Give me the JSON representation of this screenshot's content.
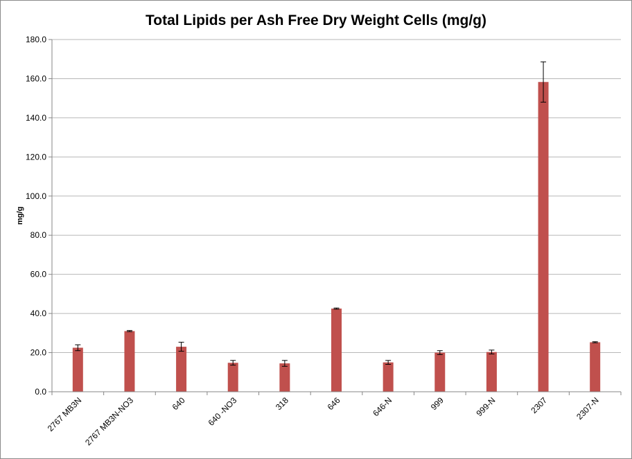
{
  "chart_data": {
    "type": "bar",
    "title": "Total Lipids per Ash Free Dry Weight Cells (mg/g)",
    "xlabel": "",
    "ylabel": "mg/g",
    "ylim": [
      0,
      180
    ],
    "yticks": [
      "0.0",
      "20.0",
      "40.0",
      "60.0",
      "80.0",
      "100.0",
      "120.0",
      "140.0",
      "160.0",
      "180.0"
    ],
    "categories": [
      "2767 MB3N",
      "2767 MB3N-NO3",
      "640",
      "640 -NO3",
      "318",
      "646",
      "646-N",
      "999",
      "999-N",
      "2307",
      "2307-N"
    ],
    "values": [
      22.5,
      31.0,
      23.0,
      14.8,
      14.5,
      42.5,
      15.0,
      20.0,
      20.3,
      158.3,
      25.3
    ],
    "errors": [
      1.5,
      0.3,
      2.3,
      1.2,
      1.5,
      0.3,
      1.0,
      1.0,
      1.0,
      10.3,
      0.3
    ],
    "bar_color": "#c0504d",
    "grid": true,
    "legend": "none"
  }
}
